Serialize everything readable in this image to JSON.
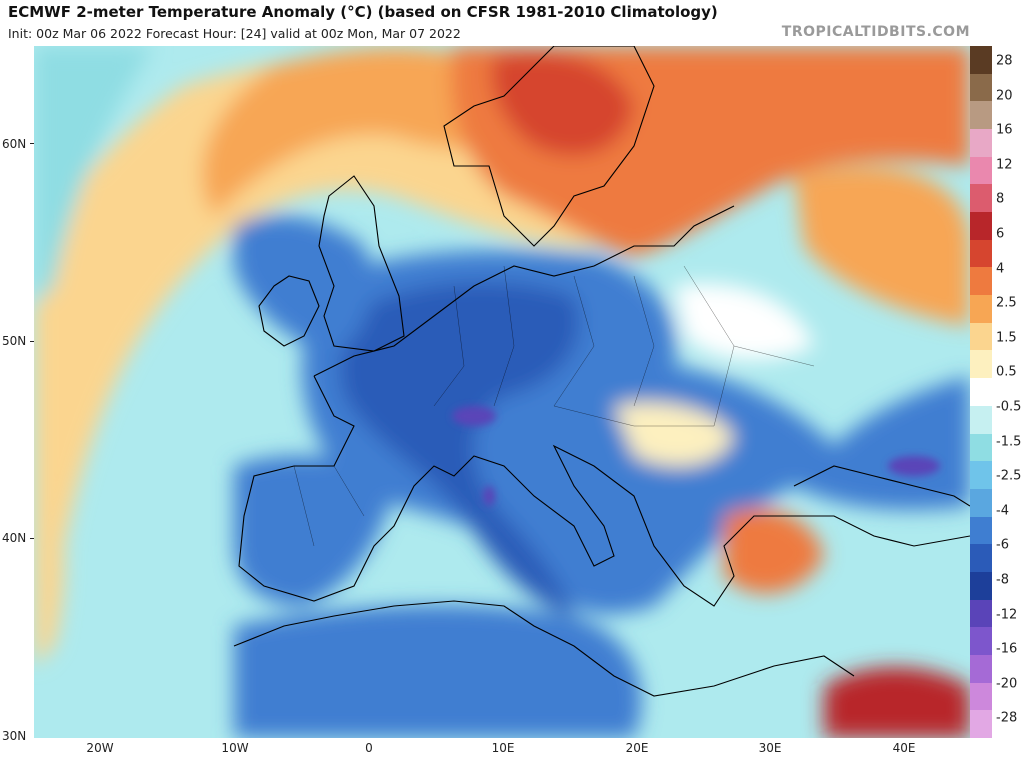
{
  "header": {
    "title": "ECMWF 2-meter Temperature Anomaly (°C) (based on CFSR 1981-2010 Climatology)",
    "subtitle": "Init: 00z Mar 06 2022   Forecast Hour: [24]   valid at 00z Mon, Mar 07 2022",
    "watermark": "TROPICALTIDBITS.COM"
  },
  "map": {
    "lat_labels": [
      "60N",
      "50N",
      "40N",
      "30N"
    ],
    "lon_labels": [
      "20W",
      "10W",
      "0",
      "10E",
      "20E",
      "30E",
      "40E"
    ]
  },
  "colorbar": {
    "labels": [
      "28",
      "20",
      "16",
      "12",
      "8",
      "6",
      "4",
      "2.5",
      "1.5",
      "0.5",
      "-0.5",
      "-1.5",
      "-2.5",
      "-4",
      "-6",
      "-8",
      "-12",
      "-16",
      "-20",
      "-28"
    ],
    "colors": [
      "#5a3b23",
      "#8a6a4a",
      "#b89a82",
      "#e8a8c6",
      "#ea88ae",
      "#dc5c6e",
      "#b8262a",
      "#d6452f",
      "#ee7a3f",
      "#f7a654",
      "#fbd58f",
      "#fdf0bf",
      "#ffffff",
      "#c6f0f1",
      "#8fdde3",
      "#6fc4ea",
      "#5aa7e0",
      "#3f7ed1",
      "#2b5bb8",
      "#1d3f9a",
      "#5a44b8",
      "#7d56cc",
      "#a56ad6",
      "#cd88dc",
      "#e2a8e4"
    ]
  }
}
